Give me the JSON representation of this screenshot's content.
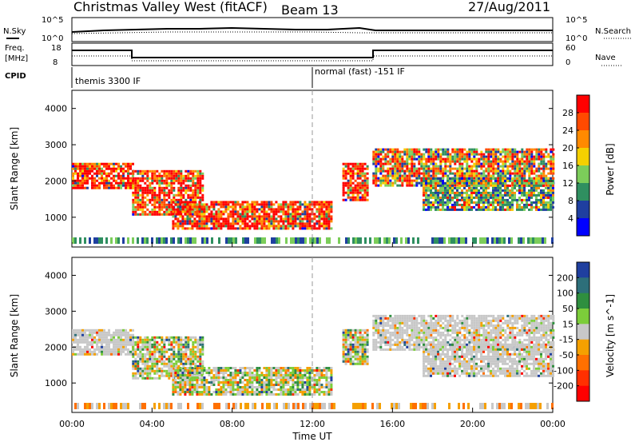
{
  "header": {
    "station": "Christmas Valley West (fitACF)",
    "beam": "Beam 13",
    "date": "27/Aug/2011"
  },
  "noise_panel": {
    "left_label": "N.Sky",
    "right_label": "N.Search",
    "left_ticks": [
      "10^5",
      "10^0"
    ],
    "right_ticks": [
      "10^5",
      "10^0"
    ]
  },
  "freq_panel": {
    "left_label_1": "Freq.",
    "left_label_2": "[MHz]",
    "right_label": "Nave",
    "left_ticks": [
      "18",
      "8"
    ],
    "right_ticks": [
      "60",
      "0"
    ]
  },
  "cpid": {
    "label": "CPID",
    "segments": [
      "themis 3300 IF",
      "normal (fast) -151 IF"
    ]
  },
  "chart_data": [
    {
      "type": "heatmap",
      "title": "Power",
      "ylabel": "Slant Range [km]",
      "xlabel": "Time UT",
      "xlim": [
        0,
        24
      ],
      "ylim": [
        180,
        4500
      ],
      "yticks": [
        1000,
        2000,
        3000,
        4000
      ],
      "colorbar": {
        "label": "Power [dB]",
        "ticks": [
          "28",
          "24",
          "20",
          "16",
          "12",
          "8",
          "4"
        ],
        "colors": [
          "#ff0000",
          "#ff4a00",
          "#ff8a00",
          "#f5d000",
          "#7ccd5a",
          "#2f8f60",
          "#1f3fa0",
          "#0000ff"
        ]
      },
      "regions": [
        {
          "t": [
            0.0,
            3.0
          ],
          "r": [
            1800,
            2500
          ],
          "level": "strong"
        },
        {
          "t": [
            3.0,
            6.5
          ],
          "r": [
            1100,
            2300
          ],
          "level": "strong"
        },
        {
          "t": [
            5.0,
            13.0
          ],
          "r": [
            700,
            1450
          ],
          "level": "strong"
        },
        {
          "t": [
            13.5,
            14.8
          ],
          "r": [
            1500,
            2500
          ],
          "level": "strong"
        },
        {
          "t": [
            15.0,
            24.0
          ],
          "r": [
            1900,
            2900
          ],
          "level": "mixed"
        },
        {
          "t": [
            17.5,
            24.0
          ],
          "r": [
            1200,
            2100
          ],
          "level": "weak"
        }
      ]
    },
    {
      "type": "heatmap",
      "title": "Velocity",
      "ylabel": "Slant Range [km]",
      "xlabel": "Time UT",
      "xlim": [
        0,
        24
      ],
      "ylim": [
        180,
        4500
      ],
      "yticks": [
        1000,
        2000,
        3000,
        4000
      ],
      "colorbar": {
        "label": "Velocity [m s^-1]",
        "ticks": [
          "200",
          "100",
          "50",
          "15",
          "-15",
          "-50",
          "-100",
          "-200"
        ],
        "colors": [
          "#1f3f9f",
          "#2d6f7a",
          "#2f8f3f",
          "#7ccd3a",
          "#c8c8c8",
          "#f5a000",
          "#ff7000",
          "#ff3000",
          "#ff0000"
        ]
      },
      "regions": [
        {
          "t": [
            0.0,
            3.0
          ],
          "r": [
            1800,
            2500
          ],
          "level": "ground"
        },
        {
          "t": [
            3.0,
            6.5
          ],
          "r": [
            1100,
            2300
          ],
          "level": "mixed"
        },
        {
          "t": [
            5.0,
            13.0
          ],
          "r": [
            700,
            1450
          ],
          "level": "mixed"
        },
        {
          "t": [
            13.5,
            14.8
          ],
          "r": [
            1500,
            2500
          ],
          "level": "mixed"
        },
        {
          "t": [
            15.0,
            24.0
          ],
          "r": [
            1900,
            2900
          ],
          "level": "ground"
        },
        {
          "t": [
            17.5,
            24.0
          ],
          "r": [
            1200,
            2100
          ],
          "level": "ground"
        }
      ]
    }
  ],
  "time_axis": {
    "ticks": [
      "00:00",
      "04:00",
      "08:00",
      "12:00",
      "16:00",
      "20:00",
      "00:00"
    ],
    "label": "Time UT"
  }
}
